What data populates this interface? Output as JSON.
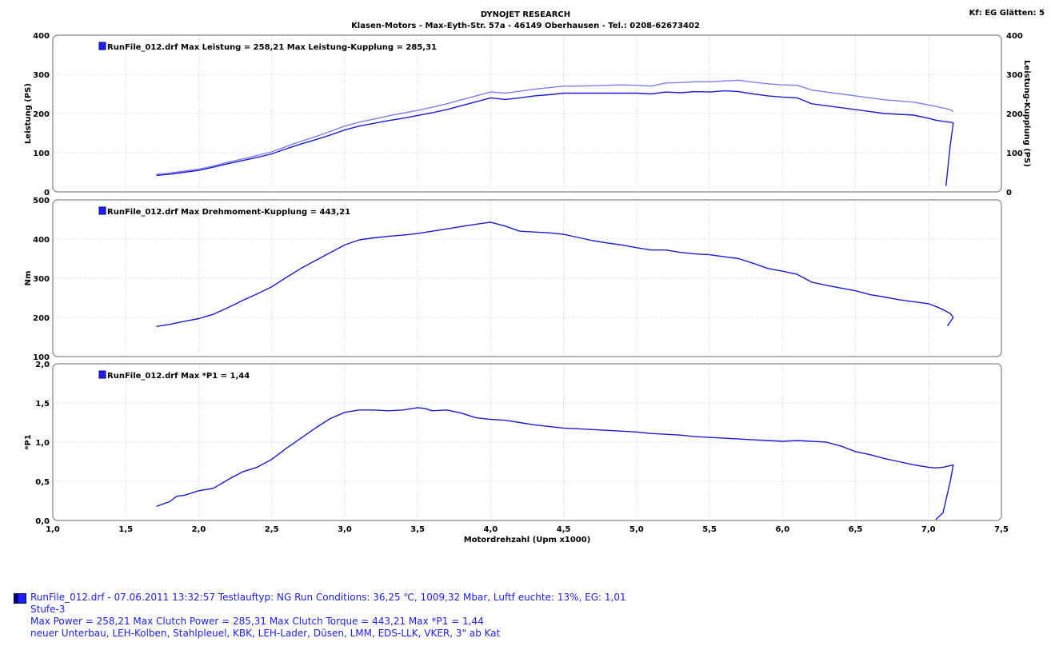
{
  "header": {
    "title": "DYNOJET RESEARCH",
    "subtitle": "Klasen-Motors   -   Max-Eyth-Str. 57a   -   46149 Oberhausen   -   Tel.: 0208-62673402",
    "kf": "Kf: EG  Glätten: 5"
  },
  "colors": {
    "run_line": "#1a1add",
    "clutch_line": "#7f7ff5",
    "panel_border": "#9a9a9a",
    "grid": "#c0c0c0"
  },
  "chart_data": [
    {
      "type": "line",
      "legend": "RunFile_012.drf Max Leistung = 258,21     Max Leistung-Kupplung = 285,31",
      "ylabel": "Leistung (PS)",
      "ylabel_right": "Leistung-Kupplung (PS)",
      "ylim": [
        0,
        400
      ],
      "yticks": [
        "0",
        "100",
        "200",
        "300",
        "400"
      ],
      "grid": true,
      "series": [
        {
          "name": "Leistung",
          "x": [
            1.71,
            1.8,
            1.9,
            2.0,
            2.1,
            2.2,
            2.3,
            2.4,
            2.5,
            2.6,
            2.7,
            2.8,
            2.9,
            3.0,
            3.1,
            3.2,
            3.3,
            3.4,
            3.5,
            3.6,
            3.7,
            3.8,
            3.9,
            4.0,
            4.1,
            4.2,
            4.3,
            4.4,
            4.5,
            4.6,
            4.7,
            4.8,
            4.9,
            5.0,
            5.1,
            5.2,
            5.3,
            5.4,
            5.5,
            5.6,
            5.7,
            5.8,
            5.9,
            6.0,
            6.1,
            6.2,
            6.3,
            6.4,
            6.5,
            6.6,
            6.7,
            6.8,
            6.9,
            7.0,
            7.05,
            7.1,
            7.15,
            7.17,
            7.15,
            7.12
          ],
          "y": [
            42,
            45,
            50,
            55,
            63,
            72,
            80,
            88,
            97,
            110,
            122,
            133,
            145,
            158,
            168,
            175,
            182,
            188,
            195,
            202,
            210,
            220,
            230,
            240,
            236,
            240,
            245,
            248,
            252,
            252,
            252,
            252,
            252,
            252,
            250,
            255,
            253,
            256,
            255,
            258,
            256,
            250,
            245,
            242,
            240,
            225,
            220,
            215,
            210,
            205,
            200,
            198,
            196,
            188,
            183,
            180,
            178,
            176,
            120,
            15
          ]
        },
        {
          "name": "Leistung-Kupplung",
          "x": [
            1.71,
            1.8,
            1.9,
            2.0,
            2.1,
            2.2,
            2.3,
            2.4,
            2.5,
            2.6,
            2.7,
            2.8,
            2.9,
            3.0,
            3.1,
            3.2,
            3.3,
            3.4,
            3.5,
            3.6,
            3.7,
            3.8,
            3.9,
            4.0,
            4.1,
            4.2,
            4.3,
            4.4,
            4.5,
            4.6,
            4.7,
            4.8,
            4.9,
            5.0,
            5.1,
            5.2,
            5.3,
            5.4,
            5.5,
            5.6,
            5.7,
            5.8,
            5.9,
            6.0,
            6.1,
            6.2,
            6.3,
            6.4,
            6.5,
            6.6,
            6.7,
            6.8,
            6.9,
            7.0,
            7.05,
            7.1,
            7.15,
            7.17
          ],
          "y": [
            45,
            48,
            53,
            58,
            66,
            76,
            84,
            93,
            102,
            116,
            129,
            141,
            154,
            168,
            178,
            186,
            194,
            201,
            208,
            216,
            225,
            235,
            245,
            255,
            252,
            257,
            262,
            266,
            270,
            270,
            271,
            272,
            273,
            272,
            270,
            278,
            279,
            281,
            281,
            283,
            285,
            280,
            276,
            273,
            272,
            260,
            255,
            250,
            245,
            240,
            235,
            232,
            229,
            222,
            218,
            214,
            210,
            205
          ]
        }
      ]
    },
    {
      "type": "line",
      "legend": "RunFile_012.drf Max Drehmoment-Kupplung = 443,21",
      "ylabel": "Nm",
      "ylim": [
        100,
        500
      ],
      "yticks": [
        "100",
        "200",
        "300",
        "400",
        "500"
      ],
      "grid": true,
      "series": [
        {
          "name": "Drehmoment-Kupplung",
          "x": [
            1.71,
            1.8,
            1.9,
            2.0,
            2.1,
            2.2,
            2.3,
            2.4,
            2.5,
            2.6,
            2.7,
            2.8,
            2.9,
            3.0,
            3.1,
            3.2,
            3.3,
            3.4,
            3.5,
            3.6,
            3.7,
            3.8,
            3.9,
            4.0,
            4.1,
            4.2,
            4.3,
            4.4,
            4.5,
            4.6,
            4.7,
            4.8,
            4.9,
            5.0,
            5.1,
            5.2,
            5.3,
            5.4,
            5.5,
            5.6,
            5.7,
            5.8,
            5.9,
            6.0,
            6.1,
            6.2,
            6.3,
            6.4,
            6.5,
            6.6,
            6.7,
            6.8,
            6.9,
            7.0,
            7.05,
            7.1,
            7.15,
            7.17,
            7.13
          ],
          "y": [
            177,
            182,
            190,
            197,
            208,
            225,
            243,
            260,
            278,
            302,
            325,
            345,
            365,
            385,
            398,
            403,
            407,
            410,
            414,
            420,
            426,
            432,
            438,
            443,
            433,
            420,
            418,
            416,
            412,
            404,
            396,
            390,
            385,
            378,
            372,
            372,
            366,
            362,
            360,
            355,
            350,
            338,
            325,
            318,
            310,
            290,
            282,
            275,
            268,
            258,
            252,
            245,
            240,
            235,
            228,
            220,
            210,
            200,
            178
          ]
        }
      ]
    },
    {
      "type": "line",
      "legend": "RunFile_012.drf Max *P1 = 1,44",
      "ylabel": "*P1",
      "xlabel": "Motordrehzahl (Upm x1000)",
      "ylim": [
        0,
        2
      ],
      "yticks": [
        "0,0",
        "0,5",
        "1,0",
        "1,5",
        "2,0"
      ],
      "xlim": [
        1.0,
        7.5
      ],
      "xticks": [
        "1,0",
        "1,5",
        "2,0",
        "2,5",
        "3,0",
        "3,5",
        "4,0",
        "4,5",
        "5,0",
        "5,5",
        "6,0",
        "6,5",
        "7,0",
        "7,5"
      ],
      "grid": true,
      "series": [
        {
          "name": "*P1",
          "x": [
            1.71,
            1.8,
            1.85,
            1.9,
            2.0,
            2.1,
            2.2,
            2.3,
            2.4,
            2.5,
            2.6,
            2.7,
            2.8,
            2.9,
            3.0,
            3.1,
            3.2,
            3.3,
            3.4,
            3.5,
            3.55,
            3.6,
            3.7,
            3.8,
            3.9,
            4.0,
            4.1,
            4.2,
            4.3,
            4.4,
            4.5,
            4.6,
            4.7,
            4.8,
            4.9,
            5.0,
            5.1,
            5.2,
            5.3,
            5.4,
            5.5,
            5.6,
            5.7,
            5.8,
            5.9,
            6.0,
            6.1,
            6.2,
            6.3,
            6.4,
            6.5,
            6.6,
            6.7,
            6.8,
            6.9,
            7.0,
            7.05,
            7.1,
            7.15,
            7.17,
            7.15,
            7.1,
            7.05
          ],
          "y": [
            0.18,
            0.24,
            0.31,
            0.32,
            0.38,
            0.41,
            0.52,
            0.62,
            0.68,
            0.78,
            0.92,
            1.05,
            1.18,
            1.3,
            1.38,
            1.41,
            1.41,
            1.4,
            1.41,
            1.44,
            1.43,
            1.4,
            1.41,
            1.37,
            1.31,
            1.29,
            1.28,
            1.25,
            1.22,
            1.2,
            1.18,
            1.17,
            1.16,
            1.15,
            1.14,
            1.13,
            1.11,
            1.1,
            1.09,
            1.07,
            1.06,
            1.05,
            1.04,
            1.03,
            1.02,
            1.01,
            1.02,
            1.01,
            1.0,
            0.95,
            0.88,
            0.84,
            0.79,
            0.75,
            0.71,
            0.68,
            0.67,
            0.68,
            0.7,
            0.71,
            0.5,
            0.1,
            0.01
          ]
        }
      ]
    }
  ],
  "footer": {
    "line1": "RunFile_012.drf - 07.06.2011 13:32:57  Testlauftyp: NG  Run Conditions: 36,25 ℃, 1009,32 Mbar,  Luftf euchte: 13%, EG: 1,01",
    "line2": "Stufe-3",
    "line3": "Max Power = 258,21  Max Clutch Power = 285,31  Max Clutch Torque = 443,21  Max *P1 = 1,44",
    "line4": "neuer Unterbau, LEH-Kolben, Stahlpleuel, KBK, LEH-Lader, Düsen, LMM, EDS-LLK, VKER, 3\" ab Kat"
  }
}
